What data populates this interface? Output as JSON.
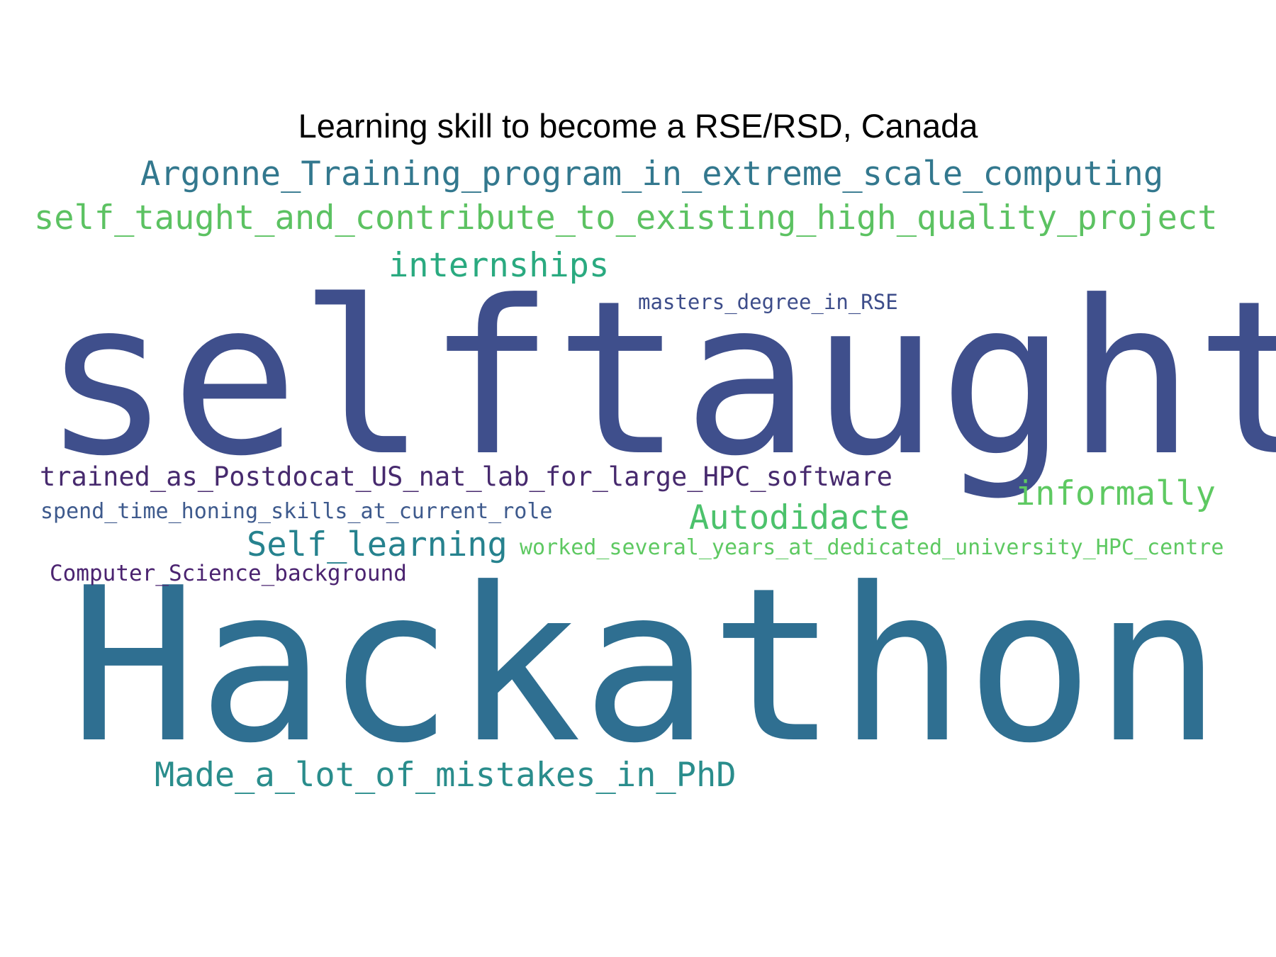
{
  "title": "Learning skill to become a RSE/RSD, Canada",
  "words": {
    "selftaught": {
      "text": "selftaught",
      "color": "#3f4f8c"
    },
    "hackathon": {
      "text": "Hackathon",
      "color": "#2f6f91"
    },
    "argonne": {
      "text": "Argonne_Training_program_in_extreme_scale_computing",
      "color": "#33788e"
    },
    "selftaught_contrib": {
      "text": "self_taught_and_contribute_to_existing_high_quality_project",
      "color": "#5cc262"
    },
    "internships": {
      "text": "internships",
      "color": "#2aaa80"
    },
    "masters": {
      "text": "masters_degree_in_RSE",
      "color": "#3d4d8a"
    },
    "trained": {
      "text": "trained_as_Postdocat_US_nat_lab_for_large_HPC_software",
      "color": "#472a6e"
    },
    "informally": {
      "text": "informally",
      "color": "#5ec962"
    },
    "spend": {
      "text": "spend_time_honing_skills_at_current_role",
      "color": "#3e5a8d"
    },
    "autodidacte": {
      "text": "Autodidacte",
      "color": "#4cc26c"
    },
    "selflearning": {
      "text": "Self_learning",
      "color": "#26828e"
    },
    "worked": {
      "text": "worked_several_years_at_dedicated_university_HPC_centre",
      "color": "#5ec962"
    },
    "cs": {
      "text": "Computer_Science_background",
      "color": "#4b2370"
    },
    "mistakes": {
      "text": "Made_a_lot_of_mistakes_in_PhD",
      "color": "#2a8d8c"
    }
  }
}
